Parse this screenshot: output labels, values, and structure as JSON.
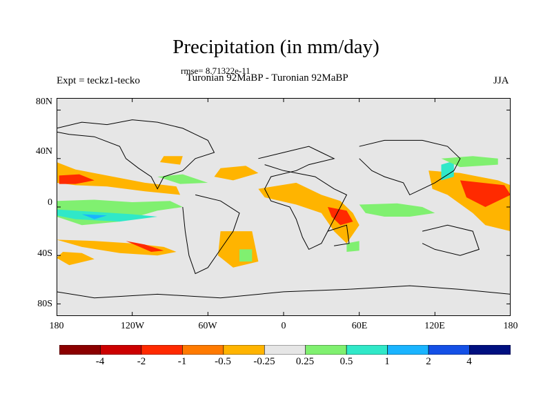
{
  "title": "Precipitation (in mm/day)",
  "rmse": "rmse= 8.71322e-11",
  "experiment": "Expt = teckz1-tecko",
  "subtitle": "Turonian  92MaBP - Turonian  92MaBP",
  "season": "JJA",
  "lat_labels": [
    "80N",
    "40N",
    "0",
    "40S",
    "80S"
  ],
  "lon_labels": [
    "180",
    "120W",
    "60W",
    "0",
    "60E",
    "120E",
    "180"
  ],
  "colorbar": {
    "colors": [
      "#8b0000",
      "#cc0000",
      "#ff2a00",
      "#ff7a00",
      "#ffb400",
      "#e6e6e6",
      "#80f070",
      "#30e8c8",
      "#1ab4ff",
      "#1450e6",
      "#001080"
    ],
    "labels": [
      "-4",
      "-2",
      "-1",
      "-0.5",
      "-0.25",
      "0.25",
      "0.5",
      "1",
      "2",
      "4"
    ]
  },
  "map": {
    "extent": {
      "lon": [
        -180,
        180
      ],
      "lat": [
        -90,
        90
      ]
    },
    "background_color": "#e6e6e6",
    "anomaly_regions": [
      {
        "level": "-0.25",
        "color": "#ffb400",
        "poly": [
          [
            -180,
            37
          ],
          [
            -165,
            31
          ],
          [
            -140,
            26
          ],
          [
            -110,
            20
          ],
          [
            -85,
            17
          ],
          [
            -82,
            10
          ],
          [
            -110,
            13
          ],
          [
            -140,
            17
          ],
          [
            -165,
            18
          ],
          [
            -180,
            20
          ]
        ]
      },
      {
        "level": "-1",
        "color": "#ff2a00",
        "poly": [
          [
            -178,
            26
          ],
          [
            -162,
            27
          ],
          [
            -150,
            22
          ],
          [
            -165,
            19
          ],
          [
            -178,
            19
          ]
        ]
      },
      {
        "level": "-0.25",
        "color": "#ffb400",
        "poly": [
          [
            -180,
            -27
          ],
          [
            -160,
            -33
          ],
          [
            -130,
            -38
          ],
          [
            -100,
            -40
          ],
          [
            -85,
            -37
          ],
          [
            -95,
            -33
          ],
          [
            -120,
            -30
          ],
          [
            -150,
            -28
          ]
        ]
      },
      {
        "level": "-0.25",
        "color": "#ffb400",
        "poly": [
          [
            -180,
            -42
          ],
          [
            -170,
            -48
          ],
          [
            -150,
            -43
          ],
          [
            -160,
            -38
          ],
          [
            -175,
            -37
          ]
        ]
      },
      {
        "level": "-1",
        "color": "#ff2a00",
        "poly": [
          [
            -125,
            -28
          ],
          [
            -105,
            -37
          ],
          [
            -95,
            -36
          ],
          [
            -110,
            -31
          ]
        ]
      },
      {
        "level": "-0.25",
        "color": "#ffb400",
        "poly": [
          [
            -50,
            32
          ],
          [
            -30,
            34
          ],
          [
            -20,
            28
          ],
          [
            -40,
            22
          ],
          [
            -55,
            25
          ]
        ]
      },
      {
        "level": "-0.25",
        "color": "#ffb400",
        "poly": [
          [
            -50,
            -20
          ],
          [
            -25,
            -20
          ],
          [
            -20,
            -45
          ],
          [
            -40,
            -50
          ],
          [
            -52,
            -40
          ]
        ]
      },
      {
        "level": "-0.25",
        "color": "#ffb400",
        "poly": [
          [
            -20,
            15
          ],
          [
            10,
            20
          ],
          [
            30,
            10
          ],
          [
            45,
            5
          ],
          [
            55,
            -5
          ],
          [
            60,
            -15
          ],
          [
            50,
            -30
          ],
          [
            40,
            -20
          ],
          [
            30,
            -5
          ],
          [
            10,
            2
          ],
          [
            -15,
            8
          ]
        ]
      },
      {
        "level": "-1",
        "color": "#ff2a00",
        "poly": [
          [
            35,
            0
          ],
          [
            50,
            -3
          ],
          [
            55,
            -12
          ],
          [
            45,
            -15
          ],
          [
            38,
            -8
          ]
        ]
      },
      {
        "level": "-0.25",
        "color": "#ffb400",
        "poly": [
          [
            115,
            30
          ],
          [
            140,
            28
          ],
          [
            170,
            22
          ],
          [
            180,
            18
          ],
          [
            180,
            -20
          ],
          [
            160,
            -15
          ],
          [
            150,
            -5
          ],
          [
            130,
            10
          ],
          [
            118,
            15
          ]
        ]
      },
      {
        "level": "-1",
        "color": "#ff2a00",
        "poly": [
          [
            140,
            22
          ],
          [
            175,
            18
          ],
          [
            180,
            10
          ],
          [
            160,
            0
          ],
          [
            145,
            8
          ]
        ]
      },
      {
        "level": "-0.25",
        "color": "#ffb400",
        "poly": [
          [
            -95,
            42
          ],
          [
            -80,
            42
          ],
          [
            -82,
            35
          ],
          [
            -98,
            37
          ]
        ]
      },
      {
        "level": "0.5",
        "color": "#80f070",
        "poly": [
          [
            -180,
            5
          ],
          [
            -150,
            6
          ],
          [
            -120,
            4
          ],
          [
            -90,
            5
          ],
          [
            -80,
            0
          ],
          [
            -100,
            -3
          ],
          [
            -130,
            -12
          ],
          [
            -160,
            -15
          ],
          [
            -180,
            -8
          ]
        ]
      },
      {
        "level": "1",
        "color": "#30e8c8",
        "poly": [
          [
            -180,
            -2
          ],
          [
            -150,
            -4
          ],
          [
            -120,
            -6
          ],
          [
            -100,
            -8
          ],
          [
            -130,
            -12
          ],
          [
            -165,
            -10
          ],
          [
            -180,
            -7
          ]
        ]
      },
      {
        "level": "2",
        "color": "#1ab4ff",
        "poly": [
          [
            -160,
            -6
          ],
          [
            -140,
            -7
          ],
          [
            -150,
            -10
          ]
        ]
      },
      {
        "level": "0.5",
        "color": "#80f070",
        "poly": [
          [
            -100,
            25
          ],
          [
            -80,
            27
          ],
          [
            -60,
            20
          ],
          [
            -82,
            19
          ]
        ]
      },
      {
        "level": "0.5",
        "color": "#80f070",
        "poly": [
          [
            60,
            2
          ],
          [
            90,
            3
          ],
          [
            110,
            0
          ],
          [
            120,
            -5
          ],
          [
            100,
            -8
          ],
          [
            80,
            -8
          ],
          [
            65,
            -5
          ]
        ]
      },
      {
        "level": "0.5",
        "color": "#80f070",
        "poly": [
          [
            50,
            -30
          ],
          [
            60,
            -28
          ],
          [
            60,
            -36
          ],
          [
            50,
            -37
          ]
        ]
      },
      {
        "level": "0.5",
        "color": "#80f070",
        "poly": [
          [
            -35,
            -35
          ],
          [
            -25,
            -35
          ],
          [
            -25,
            -45
          ],
          [
            -35,
            -45
          ]
        ]
      },
      {
        "level": "1",
        "color": "#30e8c8",
        "poly": [
          [
            125,
            35
          ],
          [
            135,
            38
          ],
          [
            135,
            25
          ],
          [
            125,
            22
          ]
        ]
      },
      {
        "level": "0.5",
        "color": "#80f070",
        "poly": [
          [
            125,
            40
          ],
          [
            150,
            42
          ],
          [
            170,
            40
          ],
          [
            170,
            35
          ],
          [
            140,
            33
          ]
        ]
      }
    ],
    "coastlines": [
      [
        [
          -180,
          65
        ],
        [
          -160,
          70
        ],
        [
          -140,
          68
        ],
        [
          -120,
          72
        ],
        [
          -100,
          70
        ],
        [
          -80,
          65
        ],
        [
          -70,
          60
        ],
        [
          -60,
          55
        ],
        [
          -55,
          45
        ],
        [
          -70,
          40
        ],
        [
          -80,
          30
        ],
        [
          -95,
          25
        ],
        [
          -100,
          15
        ],
        [
          -105,
          25
        ],
        [
          -115,
          32
        ],
        [
          -125,
          40
        ],
        [
          -130,
          50
        ],
        [
          -150,
          58
        ],
        [
          -170,
          60
        ],
        [
          -180,
          62
        ]
      ],
      [
        [
          -70,
          10
        ],
        [
          -50,
          5
        ],
        [
          -35,
          -5
        ],
        [
          -40,
          -20
        ],
        [
          -50,
          -35
        ],
        [
          -60,
          -50
        ],
        [
          -70,
          -55
        ],
        [
          -75,
          -40
        ],
        [
          -78,
          -20
        ],
        [
          -80,
          0
        ]
      ],
      [
        [
          -20,
          40
        ],
        [
          0,
          45
        ],
        [
          20,
          50
        ],
        [
          30,
          45
        ],
        [
          40,
          40
        ],
        [
          20,
          35
        ],
        [
          10,
          30
        ],
        [
          -10,
          25
        ],
        [
          -15,
          15
        ],
        [
          -10,
          5
        ],
        [
          5,
          0
        ],
        [
          10,
          -10
        ],
        [
          15,
          -25
        ],
        [
          20,
          -35
        ],
        [
          30,
          -30
        ],
        [
          35,
          -20
        ],
        [
          40,
          -10
        ],
        [
          45,
          0
        ],
        [
          50,
          10
        ],
        [
          40,
          15
        ],
        [
          25,
          25
        ],
        [
          0,
          30
        ],
        [
          -15,
          35
        ]
      ],
      [
        [
          60,
          50
        ],
        [
          80,
          55
        ],
        [
          110,
          55
        ],
        [
          130,
          50
        ],
        [
          140,
          40
        ],
        [
          135,
          30
        ],
        [
          120,
          20
        ],
        [
          110,
          15
        ],
        [
          100,
          10
        ],
        [
          95,
          20
        ],
        [
          80,
          25
        ],
        [
          70,
          30
        ],
        [
          60,
          40
        ]
      ],
      [
        [
          110,
          -20
        ],
        [
          130,
          -15
        ],
        [
          150,
          -20
        ],
        [
          155,
          -35
        ],
        [
          140,
          -40
        ],
        [
          120,
          -35
        ],
        [
          110,
          -30
        ]
      ],
      [
        [
          -180,
          -70
        ],
        [
          -150,
          -75
        ],
        [
          -100,
          -72
        ],
        [
          -50,
          -75
        ],
        [
          0,
          -70
        ],
        [
          50,
          -68
        ],
        [
          100,
          -65
        ],
        [
          140,
          -68
        ],
        [
          180,
          -72
        ]
      ],
      [
        [
          35,
          -20
        ],
        [
          50,
          -15
        ],
        [
          52,
          -30
        ],
        [
          40,
          -32
        ]
      ]
    ]
  }
}
